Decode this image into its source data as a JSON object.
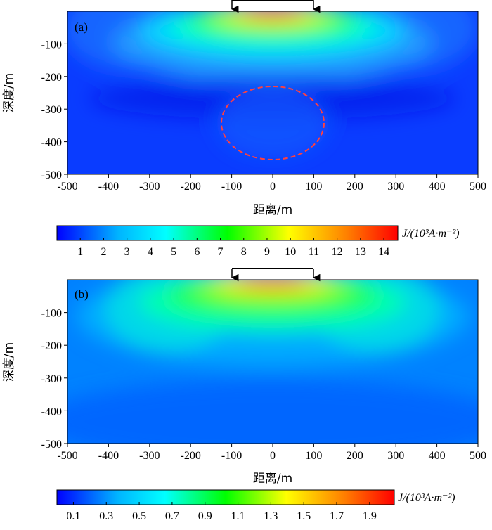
{
  "panels": [
    {
      "label": "(a)",
      "xlabel": "距离/m",
      "ylabel": "深度/m",
      "anomaly": true,
      "colorbar_ticks": [
        "1",
        "2",
        "3",
        "4",
        "5",
        "6",
        "7",
        "8",
        "9",
        "10",
        "11",
        "12",
        "13",
        "14"
      ],
      "colorbar_label": "J/(10³A·m⁻²)"
    },
    {
      "label": "(b)",
      "xlabel": "距离/m",
      "ylabel": "深度/m",
      "anomaly": false,
      "colorbar_ticks": [
        "0.1",
        "0.3",
        "0.5",
        "0.7",
        "0.9",
        "1.1",
        "1.3",
        "1.5",
        "1.7",
        "1.9"
      ],
      "colorbar_label": "J/(10³A·m⁻²)"
    }
  ],
  "chart_data": [
    {
      "type": "heatmap",
      "title": "(a)",
      "xlabel": "距离/m",
      "ylabel": "深度/m",
      "xlim": [
        -500,
        500
      ],
      "ylim": [
        -500,
        0
      ],
      "x_ticks": [
        "-500",
        "-400",
        "-300",
        "-200",
        "-100",
        "0",
        "100",
        "200",
        "300",
        "400",
        "500"
      ],
      "y_ticks": [
        "-100",
        "-200",
        "-300",
        "-400",
        "-500"
      ],
      "electrodes_x": [
        -100,
        100
      ],
      "anomaly_ellipse": {
        "cx": 0,
        "cy": -345,
        "rx": 125,
        "ry": 110
      },
      "colorbar": {
        "min": 0,
        "max": 14.6,
        "ticks": [
          1,
          2,
          3,
          4,
          5,
          6,
          7,
          8,
          9,
          10,
          11,
          12,
          13,
          14
        ],
        "label": "J/(10³A·m⁻²)"
      },
      "peak_value": 14.6
    },
    {
      "type": "heatmap",
      "title": "(b)",
      "xlabel": "距离/m",
      "ylabel": "深度/m",
      "xlim": [
        -500,
        500
      ],
      "ylim": [
        -500,
        0
      ],
      "x_ticks": [
        "-500",
        "-400",
        "-300",
        "-200",
        "-100",
        "0",
        "100",
        "200",
        "300",
        "400",
        "500"
      ],
      "y_ticks": [
        "-100",
        "-200",
        "-300",
        "-400",
        "-500"
      ],
      "electrodes_x": [
        -100,
        100
      ],
      "colorbar": {
        "min": 0,
        "max": 2.05,
        "ticks": [
          0.1,
          0.3,
          0.5,
          0.7,
          0.9,
          1.1,
          1.3,
          1.5,
          1.7,
          1.9
        ],
        "label": "J/(10³A·m⁻²)"
      },
      "peak_value": 2.05
    }
  ]
}
